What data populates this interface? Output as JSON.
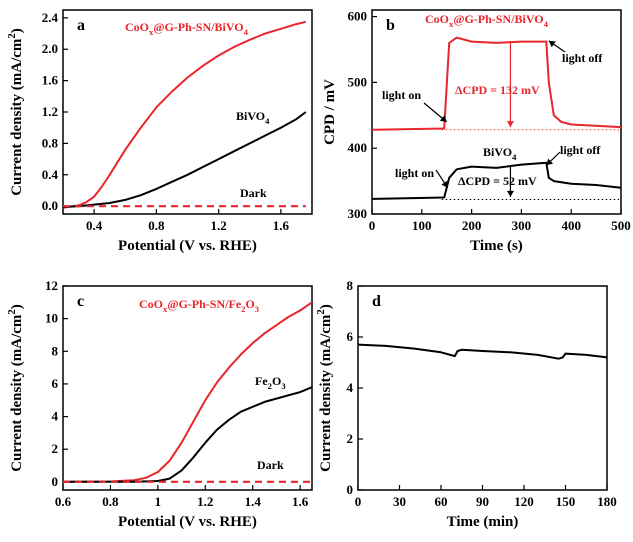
{
  "chart_data": [
    {
      "panel": "a",
      "type": "line",
      "xlabel": "Potential (V vs. RHE)",
      "ylabel": "Current density (mA/cm²)",
      "xlim": [
        0.2,
        1.8
      ],
      "ylim": [
        -0.1,
        2.5
      ],
      "xticks": [
        0.4,
        0.8,
        1.2,
        1.6
      ],
      "yticks": [
        0.0,
        0.4,
        0.8,
        1.2,
        1.6,
        2.0,
        2.4
      ],
      "ytick_labels": [
        "0.0",
        "0.4",
        "0.8",
        "1.2",
        "1.6",
        "2.0",
        "2.4"
      ],
      "series": [
        {
          "name": "CoOx@G-Ph-SN/BiVO4",
          "color": "#e8262b",
          "style": "solid",
          "x": [
            0.2,
            0.3,
            0.35,
            0.4,
            0.45,
            0.5,
            0.55,
            0.6,
            0.7,
            0.8,
            0.9,
            1.0,
            1.1,
            1.2,
            1.3,
            1.4,
            1.5,
            1.6,
            1.7,
            1.76
          ],
          "y": [
            -0.02,
            0.01,
            0.05,
            0.12,
            0.25,
            0.4,
            0.56,
            0.72,
            1.0,
            1.26,
            1.46,
            1.64,
            1.79,
            1.92,
            2.03,
            2.12,
            2.2,
            2.26,
            2.32,
            2.35
          ]
        },
        {
          "name": "BiVO4",
          "color": "#000000",
          "style": "solid",
          "x": [
            0.2,
            0.3,
            0.4,
            0.5,
            0.6,
            0.7,
            0.8,
            0.9,
            1.0,
            1.1,
            1.2,
            1.3,
            1.4,
            1.5,
            1.6,
            1.7,
            1.76
          ],
          "y": [
            -0.01,
            0.0,
            0.02,
            0.04,
            0.08,
            0.14,
            0.22,
            0.31,
            0.4,
            0.5,
            0.6,
            0.7,
            0.8,
            0.9,
            1.0,
            1.11,
            1.2
          ]
        },
        {
          "name": "Dark",
          "color": "#e8262b",
          "style": "dashed",
          "x": [
            0.2,
            1.76
          ],
          "y": [
            0.0,
            0.0
          ]
        }
      ],
      "annotations": [
        {
          "text": "CoOx@G-Ph-SN/BiVO4",
          "color": "red"
        },
        {
          "text": "BiVO4"
        },
        {
          "text": "Dark"
        }
      ]
    },
    {
      "panel": "b",
      "type": "line",
      "xlabel": "Time (s)",
      "ylabel": "CPD / mV",
      "xlim": [
        0,
        500
      ],
      "ylim": [
        300,
        610
      ],
      "xticks": [
        0,
        100,
        200,
        300,
        400,
        500
      ],
      "yticks": [
        300,
        400,
        500,
        600
      ],
      "series": [
        {
          "name": "CoOx@G-Ph-SN/BiVO4",
          "color": "#e8262b",
          "style": "solid",
          "x": [
            0,
            145,
            155,
            170,
            200,
            250,
            300,
            350,
            355,
            365,
            380,
            400,
            500
          ],
          "y": [
            428,
            430,
            560,
            568,
            562,
            560,
            562,
            562,
            500,
            450,
            440,
            436,
            432
          ]
        },
        {
          "name": "BiVO4",
          "color": "#000000",
          "style": "solid",
          "x": [
            0,
            145,
            155,
            170,
            200,
            250,
            300,
            350,
            355,
            365,
            400,
            450,
            500
          ],
          "y": [
            323,
            325,
            355,
            368,
            372,
            370,
            375,
            378,
            355,
            350,
            346,
            344,
            340
          ]
        }
      ],
      "reference_lines": [
        {
          "y": 428,
          "color": "#e8262b",
          "style": "dotted"
        },
        {
          "y": 322,
          "color": "#000000",
          "style": "dotted"
        }
      ],
      "annotations": [
        {
          "text": "CoOx@G-Ph-SN/BiVO4",
          "color": "red"
        },
        {
          "text": "light on"
        },
        {
          "text": "light off"
        },
        {
          "text": "ΔCPD = 132 mV",
          "color": "red"
        },
        {
          "text": "BiVO4"
        },
        {
          "text": "light on"
        },
        {
          "text": "light off"
        },
        {
          "text": "ΔCPD = 52 mV"
        }
      ]
    },
    {
      "panel": "c",
      "type": "line",
      "xlabel": "Potential (V vs. RHE)",
      "ylabel": "Current density (mA/cm²)",
      "xlim": [
        0.6,
        1.65
      ],
      "ylim": [
        -0.5,
        12
      ],
      "xticks": [
        0.6,
        0.8,
        1.0,
        1.2,
        1.4,
        1.6
      ],
      "yticks": [
        0,
        2,
        4,
        6,
        8,
        10,
        12
      ],
      "series": [
        {
          "name": "CoOx@G-Ph-SN/Fe2O3",
          "color": "#e8262b",
          "style": "solid",
          "x": [
            0.6,
            0.8,
            0.9,
            0.95,
            1.0,
            1.05,
            1.1,
            1.15,
            1.2,
            1.25,
            1.3,
            1.35,
            1.4,
            1.45,
            1.5,
            1.55,
            1.6,
            1.65
          ],
          "y": [
            0.0,
            0.02,
            0.1,
            0.25,
            0.6,
            1.3,
            2.4,
            3.7,
            5.0,
            6.1,
            7.0,
            7.8,
            8.5,
            9.1,
            9.6,
            10.1,
            10.5,
            11.0
          ]
        },
        {
          "name": "Fe2O3",
          "color": "#000000",
          "style": "solid",
          "x": [
            0.6,
            0.9,
            1.0,
            1.05,
            1.1,
            1.15,
            1.2,
            1.25,
            1.3,
            1.35,
            1.4,
            1.45,
            1.5,
            1.55,
            1.6,
            1.65
          ],
          "y": [
            0.0,
            0.0,
            0.05,
            0.2,
            0.7,
            1.5,
            2.4,
            3.2,
            3.8,
            4.3,
            4.6,
            4.9,
            5.1,
            5.3,
            5.5,
            5.8
          ]
        },
        {
          "name": "Dark",
          "color": "#e8262b",
          "style": "dashed",
          "x": [
            0.6,
            1.65
          ],
          "y": [
            0.0,
            0.0
          ]
        }
      ],
      "annotations": [
        {
          "text": "CoOx@G-Ph-SN/Fe2O3",
          "color": "red"
        },
        {
          "text": "Fe2O3"
        },
        {
          "text": "Dark"
        }
      ]
    },
    {
      "panel": "d",
      "type": "line",
      "xlabel": "Time (min)",
      "ylabel": "Current density (mA/cm²)",
      "xlim": [
        0,
        180
      ],
      "ylim": [
        0,
        8
      ],
      "xticks": [
        0,
        30,
        60,
        90,
        120,
        150,
        180
      ],
      "yticks": [
        0,
        2,
        4,
        6,
        8
      ],
      "series": [
        {
          "name": "",
          "color": "#000000",
          "style": "solid",
          "x": [
            0,
            20,
            40,
            60,
            70,
            72,
            75,
            90,
            110,
            130,
            145,
            148,
            150,
            165,
            180
          ],
          "y": [
            5.7,
            5.65,
            5.55,
            5.4,
            5.25,
            5.45,
            5.5,
            5.45,
            5.4,
            5.3,
            5.15,
            5.2,
            5.35,
            5.3,
            5.2
          ]
        }
      ]
    }
  ]
}
